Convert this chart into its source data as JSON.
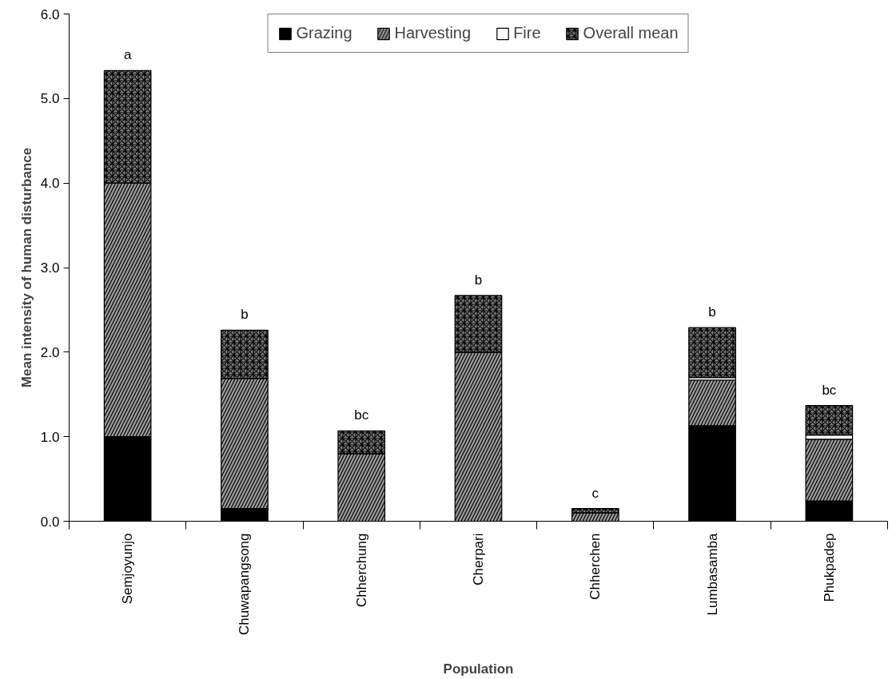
{
  "chart_data": {
    "type": "bar",
    "stacked": true,
    "xlabel": "Population",
    "ylabel": "Mean intensity of human disturbance",
    "categories": [
      "Semjoyunjo",
      "Chuwapangsong",
      "Chherchung",
      "Cherpari",
      "Chherchen",
      "Lumbasamba",
      "Phukpadep"
    ],
    "series": [
      {
        "name": "Grazing",
        "color": "#000000",
        "values": [
          1.0,
          0.15,
          0,
          0,
          0,
          1.13,
          0.24
        ]
      },
      {
        "name": "Harvesting",
        "color": "#999999",
        "values": [
          3.0,
          1.54,
          0.8,
          2.0,
          0.1,
          0.54,
          0.73
        ]
      },
      {
        "name": "Fire",
        "color": "#ffffff",
        "values": [
          0,
          0,
          0,
          0,
          0,
          0.03,
          0.05
        ]
      },
      {
        "name": "Overall mean",
        "color": "#808080",
        "values": [
          1.33,
          0.57,
          0.27,
          0.67,
          0.05,
          0.59,
          0.35
        ]
      }
    ],
    "ylim": [
      0,
      6
    ],
    "yticks": [
      {
        "value": 0,
        "label": "0.0"
      },
      {
        "value": 1,
        "label": "1.0"
      },
      {
        "value": 2,
        "label": "2.0"
      },
      {
        "value": 3,
        "label": "3.0"
      },
      {
        "value": 4,
        "label": "4.0"
      },
      {
        "value": 5,
        "label": "5.0"
      },
      {
        "value": 6,
        "label": "6.0"
      }
    ],
    "grid": false,
    "legend": "top",
    "annotations": [
      {
        "text": "a",
        "x": "Semjoyunjo",
        "y": 5.33
      },
      {
        "text": "b",
        "x": "Chuwapangsong",
        "y": 2.26
      },
      {
        "text": "bc",
        "x": "Chherchung",
        "y": 1.07
      },
      {
        "text": "b",
        "x": "Cherpari",
        "y": 2.67
      },
      {
        "text": "c",
        "x": "Chherchen",
        "y": 0.15
      },
      {
        "text": "b",
        "x": "Lumbasamba",
        "y": 2.29
      },
      {
        "text": "bc",
        "x": "Phukpadep",
        "y": 1.37
      }
    ]
  }
}
